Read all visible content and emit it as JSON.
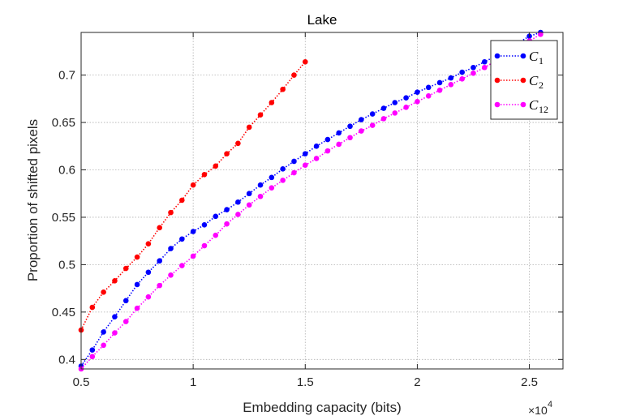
{
  "chart_data": {
    "type": "line",
    "title": "Lake",
    "xlabel": "Embedding capacity (bits)",
    "ylabel": "Proportion of shifted pixels",
    "x_exponent_base": "×10",
    "x_exponent_power": "4",
    "xlim": [
      0.5,
      2.65
    ],
    "ylim": [
      0.39,
      0.745
    ],
    "xticks": [
      0.5,
      1,
      1.5,
      2,
      2.5
    ],
    "xtick_labels": [
      "0.5",
      "1",
      "1.5",
      "2",
      "2.5"
    ],
    "yticks": [
      0.4,
      0.45,
      0.5,
      0.55,
      0.6,
      0.65,
      0.7
    ],
    "ytick_labels": [
      "0.4",
      "0.45",
      "0.5",
      "0.55",
      "0.6",
      "0.65",
      "0.7"
    ],
    "grid": true,
    "legend_position": "top-right",
    "series": [
      {
        "name": "C",
        "subscript": "1",
        "color": "#0000ff",
        "x": [
          0.5,
          0.55,
          0.6,
          0.65,
          0.7,
          0.75,
          0.8,
          0.85,
          0.9,
          0.95,
          1.0,
          1.05,
          1.1,
          1.15,
          1.2,
          1.25,
          1.3,
          1.35,
          1.4,
          1.45,
          1.5,
          1.55,
          1.6,
          1.65,
          1.7,
          1.75,
          1.8,
          1.85,
          1.9,
          1.95,
          2.0,
          2.05,
          2.1,
          2.15,
          2.2,
          2.25,
          2.3,
          2.35,
          2.4,
          2.45,
          2.5,
          2.55
        ],
        "y": [
          0.393,
          0.41,
          0.429,
          0.445,
          0.462,
          0.479,
          0.492,
          0.504,
          0.517,
          0.527,
          0.535,
          0.542,
          0.551,
          0.558,
          0.566,
          0.575,
          0.584,
          0.592,
          0.601,
          0.609,
          0.617,
          0.625,
          0.632,
          0.639,
          0.646,
          0.653,
          0.659,
          0.665,
          0.671,
          0.676,
          0.682,
          0.687,
          0.692,
          0.697,
          0.703,
          0.708,
          0.714,
          0.72,
          0.727,
          0.734,
          0.741,
          0.745
        ]
      },
      {
        "name": "C",
        "subscript": "2",
        "color": "#ff0000",
        "x": [
          0.5,
          0.55,
          0.6,
          0.65,
          0.7,
          0.75,
          0.8,
          0.85,
          0.9,
          0.95,
          1.0,
          1.05,
          1.1,
          1.15,
          1.2,
          1.25,
          1.3,
          1.35,
          1.4,
          1.45,
          1.5
        ],
        "y": [
          0.431,
          0.455,
          0.471,
          0.483,
          0.496,
          0.508,
          0.522,
          0.539,
          0.555,
          0.568,
          0.584,
          0.595,
          0.604,
          0.617,
          0.628,
          0.645,
          0.658,
          0.671,
          0.685,
          0.7,
          0.714
        ]
      },
      {
        "name": "C",
        "subscript": "12",
        "color": "#ff00ff",
        "x": [
          0.5,
          0.55,
          0.6,
          0.65,
          0.7,
          0.75,
          0.8,
          0.85,
          0.9,
          0.95,
          1.0,
          1.05,
          1.1,
          1.15,
          1.2,
          1.25,
          1.3,
          1.35,
          1.4,
          1.45,
          1.5,
          1.55,
          1.6,
          1.65,
          1.7,
          1.75,
          1.8,
          1.85,
          1.9,
          1.95,
          2.0,
          2.05,
          2.1,
          2.15,
          2.2,
          2.25,
          2.3,
          2.35,
          2.4,
          2.45,
          2.5,
          2.55
        ],
        "y": [
          0.39,
          0.403,
          0.415,
          0.428,
          0.44,
          0.454,
          0.466,
          0.478,
          0.489,
          0.499,
          0.509,
          0.52,
          0.531,
          0.543,
          0.553,
          0.563,
          0.572,
          0.581,
          0.589,
          0.597,
          0.605,
          0.612,
          0.62,
          0.627,
          0.634,
          0.641,
          0.647,
          0.654,
          0.66,
          0.666,
          0.672,
          0.678,
          0.684,
          0.69,
          0.696,
          0.702,
          0.708,
          0.715,
          0.722,
          0.729,
          0.736,
          0.743
        ]
      }
    ]
  }
}
